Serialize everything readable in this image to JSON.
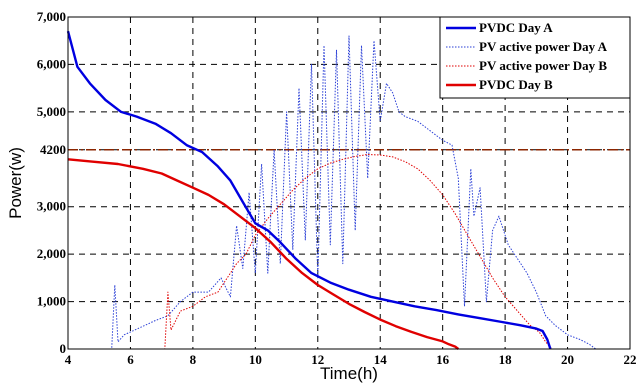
{
  "chart_data": {
    "type": "line",
    "title": "",
    "xlabel": "Time(h)",
    "ylabel": "Power(w)",
    "xlim": [
      4,
      22
    ],
    "ylim": [
      0,
      7000
    ],
    "x_ticks": [
      4,
      6,
      8,
      10,
      12,
      14,
      16,
      18,
      20,
      22
    ],
    "y_ticks": [
      0,
      1000,
      2000,
      3000,
      4200,
      5000,
      6000,
      7000
    ],
    "y_tick_labels": [
      "0",
      "1,000",
      "2,000",
      "3,000",
      "4200",
      "5,000",
      "6,000",
      "7,000"
    ],
    "grid": true,
    "legend_position": "top-right",
    "reference_line": {
      "y": 4200,
      "color": "#8b2500",
      "style": "dash-dot"
    },
    "series": [
      {
        "name": "PVDC Day A",
        "color": "#0000e0",
        "style": "solid",
        "x": [
          4.0,
          4.3,
          4.7,
          5.2,
          5.7,
          6.2,
          6.8,
          7.3,
          7.8,
          8.3,
          8.8,
          9.2,
          9.6,
          10.0,
          10.4,
          10.8,
          11.3,
          11.8,
          12.4,
          13.0,
          13.7,
          14.4,
          15.1,
          15.8,
          16.5,
          17.2,
          17.9,
          18.5,
          19.0,
          19.2,
          19.35,
          19.45
        ],
        "y": [
          6700,
          5950,
          5600,
          5250,
          5000,
          4900,
          4750,
          4550,
          4300,
          4150,
          3850,
          3550,
          3100,
          2650,
          2500,
          2250,
          1900,
          1600,
          1400,
          1250,
          1100,
          1000,
          900,
          820,
          730,
          650,
          570,
          500,
          430,
          380,
          200,
          0
        ]
      },
      {
        "name": "PV active power Day A",
        "color": "#2a3fd6",
        "style": "dotted",
        "x": [
          4.0,
          5.4,
          5.5,
          5.6,
          5.8,
          6.3,
          6.8,
          7.2,
          7.6,
          8.0,
          8.5,
          8.9,
          9.2,
          9.4,
          9.6,
          9.8,
          10.0,
          10.2,
          10.4,
          10.6,
          10.8,
          11.0,
          11.2,
          11.4,
          11.6,
          11.8,
          12.0,
          12.2,
          12.4,
          12.6,
          12.8,
          13.0,
          13.2,
          13.4,
          13.6,
          13.8,
          14.0,
          14.2,
          14.4,
          14.6,
          14.8,
          15.2,
          15.6,
          16.0,
          16.3,
          16.5,
          16.7,
          16.9,
          17.0,
          17.2,
          17.4,
          17.6,
          17.8,
          18.1,
          18.4,
          18.7,
          19.0,
          19.3,
          19.6,
          20.0,
          20.4,
          20.7,
          20.9
        ],
        "y": [
          0,
          0,
          1350,
          150,
          300,
          450,
          600,
          700,
          1000,
          1200,
          1200,
          1500,
          1100,
          2600,
          1700,
          3300,
          1600,
          3900,
          1600,
          4200,
          1800,
          5000,
          2100,
          5500,
          2300,
          6000,
          1500,
          6400,
          2200,
          6300,
          1800,
          6600,
          2500,
          6400,
          3600,
          6500,
          4800,
          5600,
          5400,
          5000,
          4900,
          4800,
          4600,
          4400,
          4300,
          3600,
          900,
          3800,
          2800,
          3400,
          1000,
          2500,
          2800,
          2200,
          1900,
          1600,
          1200,
          700,
          500,
          300,
          200,
          100,
          0
        ]
      },
      {
        "name": "PV active power Day B",
        "color": "#e00000",
        "style": "dotted",
        "x": [
          4.0,
          7.1,
          7.2,
          7.3,
          7.6,
          8.0,
          8.4,
          8.8,
          9.0,
          9.2,
          9.4,
          9.7,
          10.0,
          10.4,
          10.8,
          11.2,
          11.6,
          12.0,
          12.4,
          12.8,
          13.2,
          13.6,
          14.0,
          14.4,
          14.8,
          15.2,
          15.6,
          16.0,
          16.4,
          16.8,
          17.2,
          17.6,
          18.0,
          18.4,
          18.8,
          19.1,
          19.3,
          19.5
        ],
        "y": [
          0,
          0,
          1200,
          400,
          800,
          900,
          1100,
          1200,
          1400,
          1600,
          1800,
          2000,
          2400,
          2750,
          3050,
          3350,
          3600,
          3800,
          3920,
          4000,
          4060,
          4100,
          4090,
          4050,
          3950,
          3800,
          3550,
          3250,
          2850,
          2400,
          1950,
          1500,
          1100,
          800,
          500,
          350,
          150,
          0
        ]
      },
      {
        "name": "PVDC Day B",
        "color": "#e00000",
        "style": "solid",
        "x": [
          4.0,
          4.8,
          5.6,
          6.4,
          7.0,
          7.5,
          8.0,
          8.5,
          9.0,
          9.5,
          10.0,
          10.5,
          11.0,
          11.5,
          12.0,
          12.5,
          13.0,
          13.5,
          14.0,
          14.5,
          15.0,
          15.5,
          16.0,
          16.2,
          16.4,
          16.5
        ],
        "y": [
          4000,
          3950,
          3900,
          3800,
          3700,
          3550,
          3400,
          3250,
          3050,
          2800,
          2550,
          2250,
          1900,
          1600,
          1350,
          1150,
          950,
          780,
          620,
          480,
          360,
          250,
          160,
          100,
          50,
          0
        ]
      }
    ]
  }
}
